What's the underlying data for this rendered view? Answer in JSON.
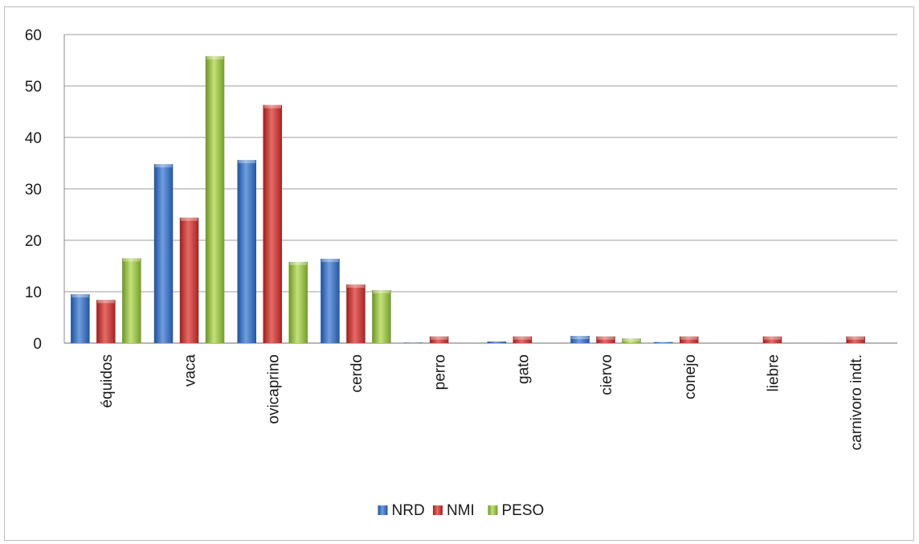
{
  "chart_data": {
    "type": "bar",
    "categories": [
      "équidos",
      "vaca",
      "ovicaprino",
      "cerdo",
      "perro",
      "gato",
      "ciervo",
      "conejo",
      "liebre",
      "carnivoro indt."
    ],
    "series": [
      {
        "name": "NRD",
        "color": "#3a6fc0",
        "values": [
          9.5,
          34.8,
          35.6,
          16.4,
          0.1,
          0.3,
          1.4,
          0.2,
          0.0,
          0.0
        ]
      },
      {
        "name": "NMI",
        "color": "#c8302e",
        "values": [
          8.4,
          24.4,
          46.3,
          11.4,
          1.3,
          1.3,
          1.3,
          1.3,
          1.3,
          1.3
        ]
      },
      {
        "name": "PESO",
        "color": "#8fbd3b",
        "values": [
          16.5,
          55.8,
          15.8,
          10.3,
          0.0,
          0.0,
          0.9,
          0.0,
          0.0,
          0.0
        ]
      }
    ],
    "yticks": [
      "0",
      "10",
      "20",
      "30",
      "40",
      "50",
      "60"
    ],
    "ylim": [
      0,
      60
    ],
    "grid": true,
    "legend_position": "bottom"
  }
}
